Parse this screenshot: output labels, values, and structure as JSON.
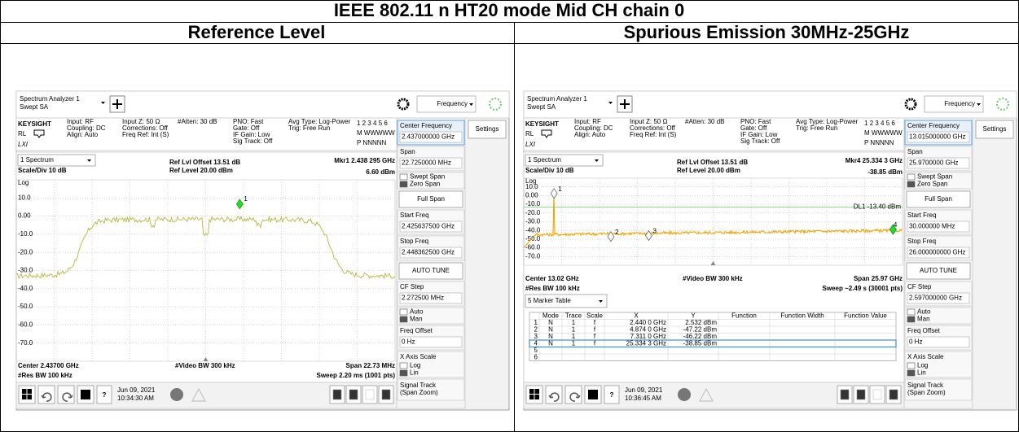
{
  "title": "IEEE 802.11 n HT20 mode Mid CH chain 0",
  "panels": [
    {
      "heading": "Reference Level",
      "app": "Spectrum Analyzer 1",
      "mode": "Swept SA",
      "menu": "Frequency",
      "settings": "Settings",
      "brand": "KEYSIGHT",
      "rl": "RL",
      "lxi": "LXI",
      "status": [
        [
          "Input: RF",
          "Coupling: DC",
          "Align: Auto"
        ],
        [
          "Input Z: 50 Ω",
          "Corrections: Off",
          "Freq Ref: Int (S)"
        ],
        [
          "#Atten: 30 dB"
        ],
        [
          "PNO: Fast",
          "Gate: Off",
          "IF Gain: Low",
          "Sig Track: Off"
        ],
        [
          "Avg Type: Log-Power",
          "Trig: Free Run"
        ]
      ],
      "trace_numbers": "1 2 3 4 5 6",
      "trace_types": "M WWWWW",
      "detectors": "P NNNNN",
      "view": "1 Spectrum",
      "scale": "Scale/Div 10 dB",
      "log": "Log",
      "offset": "Ref Lvl Offset 13.51 dB",
      "ref": "Ref Level 20.00 dBm",
      "marker_freq": "Mkr1  2.438 295 GHz",
      "marker_level": "6.60 dBm",
      "yticks": [
        "10.0",
        "0.00",
        "-10.0",
        "-20.0",
        "-30.0",
        "-40.0",
        "-50.0",
        "-60.0",
        "-70.0"
      ],
      "marker_labels": [
        "1"
      ],
      "footer": [
        "Center 2.43700 GHz",
        "#Video BW 300 kHz",
        "Span 22.73 MHz",
        "#Res BW 100 kHz",
        "Sweep 2.20 ms (1001 pts)"
      ],
      "softkeys": [
        {
          "label": "Center Frequency",
          "value": "2.437000000 GHz"
        },
        {
          "label": "Span",
          "value": "22.7250000 MHz"
        },
        {
          "options": [
            "Swept Span",
            "Zero Span"
          ]
        },
        {
          "button": "Full Span"
        },
        {
          "label": "Start Freq",
          "value": "2.425637500 GHz"
        },
        {
          "label": "Stop Freq",
          "value": "2.448362500 GHz"
        },
        {
          "button": "AUTO TUNE"
        },
        {
          "label": "CF Step",
          "value": "2.272500 MHz"
        },
        {
          "options": [
            "Auto",
            "Man"
          ]
        },
        {
          "label": "Freq Offset",
          "value": "0 Hz"
        },
        {
          "label": "X Axis Scale",
          "options": [
            "Log",
            "Lin"
          ]
        },
        {
          "label": "Signal Track",
          "sublabel": "(Span Zoom)"
        }
      ],
      "help": "?",
      "date": "Jun 09, 2021",
      "time": "10:34:30 AM"
    },
    {
      "heading": "Spurious Emission 30MHz-25GHz",
      "app": "Spectrum Analyzer 1",
      "mode": "Swept SA",
      "menu": "Frequency",
      "settings": "Settings",
      "brand": "KEYSIGHT",
      "rl": "RL",
      "lxi": "LXI",
      "status": [
        [
          "Input: RF",
          "Coupling: DC",
          "Align: Auto"
        ],
        [
          "Input Z: 50 Ω",
          "Corrections: Off",
          "Freq Ref: Int (S)"
        ],
        [
          "#Atten: 30 dB"
        ],
        [
          "PNO: Fast",
          "Gate: Off",
          "IF Gain: Low",
          "Sig Track: Off"
        ],
        [
          "Avg Type: Log-Power",
          "Trig: Free Run"
        ]
      ],
      "trace_numbers": "1 2 3 4 5 6",
      "trace_types": "M WWWWW",
      "detectors": "P NNNNN",
      "view": "1 Spectrum",
      "scale": "Scale/Div 10 dB",
      "log": "Log",
      "offset": "Ref Lvl Offset 13.51 dB",
      "ref": "Ref Level 20.00 dBm",
      "marker_freq": "Mkr4  25.334 3 GHz",
      "marker_level": "-38.85 dBm",
      "yticks": [
        "10.0",
        "0.00",
        "-10.0",
        "-20.0",
        "-30.0",
        "-40.0",
        "-50.0",
        "-60.0",
        "-70.0"
      ],
      "display_line": "DL1 -13.40 dBm",
      "marker_labels": [
        "1",
        "2",
        "3",
        "4"
      ],
      "footer": [
        "Center 13.02 GHz",
        "#Video BW 300 kHz",
        "Span 25.97 GHz",
        "#Res BW 100 kHz",
        "Sweep ~2.49 s (30001 pts)"
      ],
      "table": {
        "title": "5 Marker Table",
        "header": [
          "Mode",
          "Trace",
          "Scale",
          "X",
          "Y",
          "Function",
          "Function Width",
          "Function Value"
        ],
        "rows": [
          [
            "1",
            "N",
            "1",
            "f",
            "2.440 0 GHz",
            "2.532 dBm"
          ],
          [
            "2",
            "N",
            "1",
            "f",
            "4.874 0 GHz",
            "-47.22 dBm"
          ],
          [
            "3",
            "N",
            "1",
            "f",
            "7.311 0 GHz",
            "-46.22 dBm"
          ],
          [
            "4",
            "N",
            "1",
            "f",
            "25.334 3 GHz",
            "-38.85 dBm"
          ],
          [
            "5"
          ],
          [
            "6"
          ]
        ]
      },
      "softkeys": [
        {
          "label": "Center Frequency",
          "value": "13.015000000 GHz"
        },
        {
          "label": "Span",
          "value": "25.9700000 GHz"
        },
        {
          "options": [
            "Swept Span",
            "Zero Span"
          ]
        },
        {
          "button": "Full Span"
        },
        {
          "label": "Start Freq",
          "value": "30.000000 MHz"
        },
        {
          "label": "Stop Freq",
          "value": "26.000000000 GHz"
        },
        {
          "button": "AUTO TUNE"
        },
        {
          "label": "CF Step",
          "value": "2.597000000 GHz"
        },
        {
          "options": [
            "Auto",
            "Man"
          ]
        },
        {
          "label": "Freq Offset",
          "value": "0 Hz"
        },
        {
          "label": "X Axis Scale",
          "options": [
            "Log",
            "Lin"
          ]
        },
        {
          "label": "Signal Track",
          "sublabel": "(Span Zoom)"
        }
      ],
      "help": "?",
      "date": "Jun 09, 2021",
      "time": "10:36:45 AM"
    }
  ]
}
